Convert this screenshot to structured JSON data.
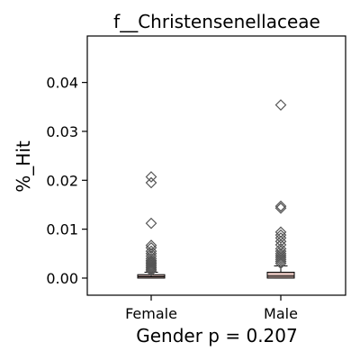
{
  "chart_data": {
    "type": "box",
    "title": "f__Christensenellaceae",
    "xlabel": "Gender p = 0.207",
    "ylabel": "%_Hit",
    "categories": [
      "Female",
      "Male"
    ],
    "ylim": [
      -0.0035,
      0.0495
    ],
    "yticks": [
      0.0,
      0.01,
      0.02,
      0.03,
      0.04
    ],
    "ytick_labels": [
      "0.00",
      "0.01",
      "0.02",
      "0.03",
      "0.04"
    ],
    "grid": false,
    "boxes": [
      {
        "name": "Female",
        "q1": 0.0,
        "median": 0.0003,
        "q3": 0.0007,
        "whisker_low": 0.0,
        "whisker_high": 0.0012,
        "outliers": [
          0.0015,
          0.0018,
          0.0021,
          0.0024,
          0.0027,
          0.003,
          0.0033,
          0.0036,
          0.004,
          0.0045,
          0.005,
          0.0055,
          0.0062,
          0.0067,
          0.0112,
          0.0195,
          0.0207
        ]
      },
      {
        "name": "Male",
        "q1": 0.0,
        "median": 0.0004,
        "q3": 0.0012,
        "whisker_low": 0.0,
        "whisker_high": 0.0025,
        "outliers": [
          0.003,
          0.0034,
          0.0038,
          0.0042,
          0.0046,
          0.005,
          0.0055,
          0.006,
          0.0068,
          0.0075,
          0.0082,
          0.0088,
          0.0094,
          0.0143,
          0.0147,
          0.0354
        ]
      }
    ],
    "box_color": "#d4b6b0",
    "marker": "diamond",
    "marker_color": "#555555"
  }
}
